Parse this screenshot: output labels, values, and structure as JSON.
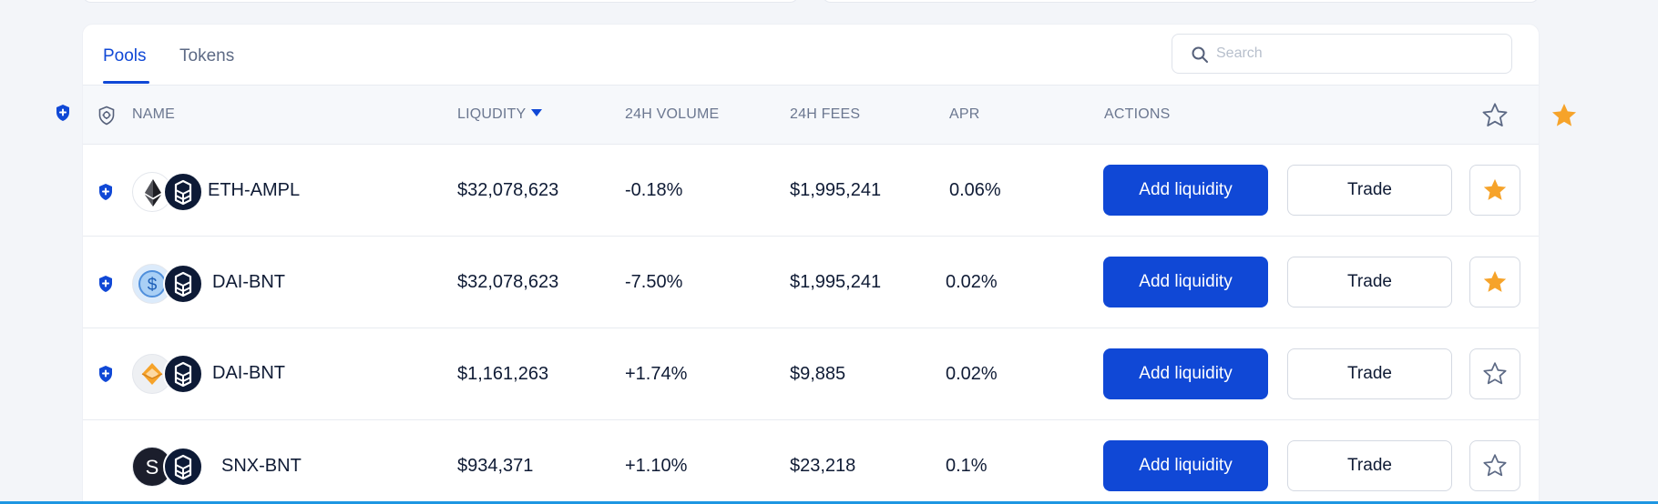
{
  "tabs": [
    {
      "label": "Pools",
      "active": true
    },
    {
      "label": "Tokens",
      "active": false
    }
  ],
  "search": {
    "placeholder": "Search",
    "value": ""
  },
  "columns": {
    "name": "NAME",
    "liquidity": "LIQUDITY",
    "volume": "24H VOLUME",
    "fees": "24H FEES",
    "apr": "APR",
    "actions": "ACTIONS"
  },
  "rows": [
    {
      "pair": "ETH-AMPL",
      "protected": true,
      "liquidity": "$32,078,623",
      "volume": "-0.18%",
      "fees": "$1,995,241",
      "apr": "0.06%",
      "add_label": "Add liquidity",
      "trade_label": "Trade",
      "favorite": true,
      "token_icon": "ethereum-icon"
    },
    {
      "pair": "DAI-BNT",
      "protected": true,
      "liquidity": "$32,078,623",
      "volume": "-7.50%",
      "fees": "$1,995,241",
      "apr": "0.02%",
      "add_label": "Add liquidity",
      "trade_label": "Trade",
      "favorite": true,
      "token_icon": "dollar-coin-icon"
    },
    {
      "pair": "DAI-BNT",
      "protected": true,
      "liquidity": "$1,161,263",
      "volume": "+1.74%",
      "fees": "$9,885",
      "apr": "0.02%",
      "add_label": "Add liquidity",
      "trade_label": "Trade",
      "favorite": false,
      "token_icon": "diamond-coin-icon"
    },
    {
      "pair": "SNX-BNT",
      "protected": false,
      "liquidity": "$934,371",
      "volume": "+1.10%",
      "fees": "$23,218",
      "apr": "0.1%",
      "add_label": "Add liquidity",
      "trade_label": "Trade",
      "favorite": false,
      "token_icon": "snx-icon"
    }
  ],
  "colors": {
    "accent": "#1048d6",
    "star": "#f6a32a",
    "text": "#0f1b35",
    "muted": "#6b7790",
    "bottom_bar": "#1e96e2"
  }
}
